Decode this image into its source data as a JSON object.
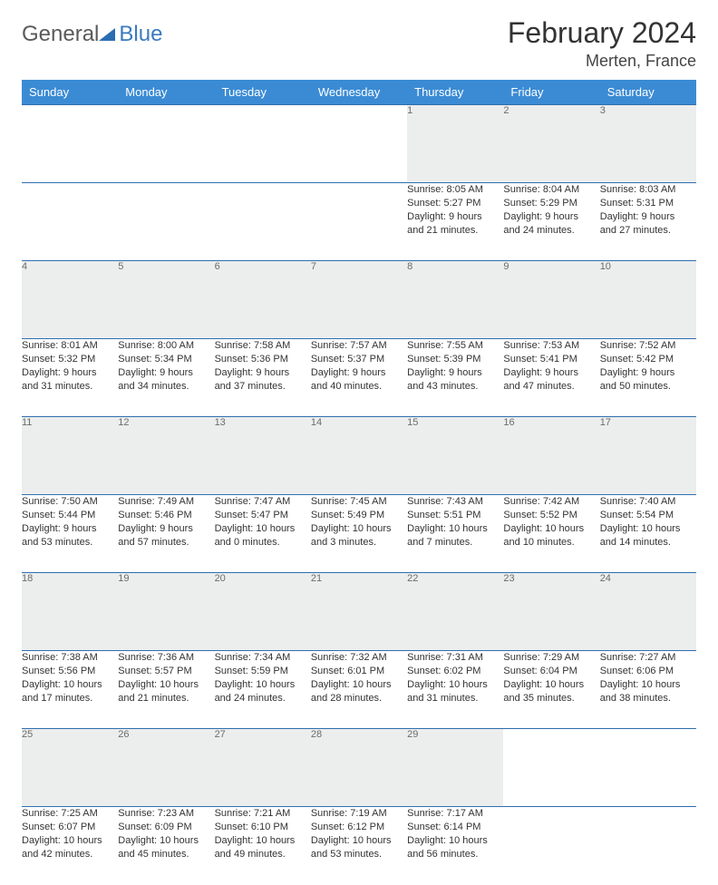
{
  "logo": {
    "general": "General",
    "blue": "Blue"
  },
  "title": {
    "month": "February 2024",
    "location": "Merten, France"
  },
  "colors": {
    "header_bg": "#3b8bd4",
    "header_text": "#ffffff",
    "daynum_bg": "#eceeee",
    "daynum_text": "#6b6b6b",
    "rule": "#2f6fae",
    "body_text": "#333333"
  },
  "weekdays": [
    "Sunday",
    "Monday",
    "Tuesday",
    "Wednesday",
    "Thursday",
    "Friday",
    "Saturday"
  ],
  "weeks": [
    [
      null,
      null,
      null,
      null,
      {
        "d": "1",
        "sr": "Sunrise: 8:05 AM",
        "ss": "Sunset: 5:27 PM",
        "dl1": "Daylight: 9 hours",
        "dl2": "and 21 minutes."
      },
      {
        "d": "2",
        "sr": "Sunrise: 8:04 AM",
        "ss": "Sunset: 5:29 PM",
        "dl1": "Daylight: 9 hours",
        "dl2": "and 24 minutes."
      },
      {
        "d": "3",
        "sr": "Sunrise: 8:03 AM",
        "ss": "Sunset: 5:31 PM",
        "dl1": "Daylight: 9 hours",
        "dl2": "and 27 minutes."
      }
    ],
    [
      {
        "d": "4",
        "sr": "Sunrise: 8:01 AM",
        "ss": "Sunset: 5:32 PM",
        "dl1": "Daylight: 9 hours",
        "dl2": "and 31 minutes."
      },
      {
        "d": "5",
        "sr": "Sunrise: 8:00 AM",
        "ss": "Sunset: 5:34 PM",
        "dl1": "Daylight: 9 hours",
        "dl2": "and 34 minutes."
      },
      {
        "d": "6",
        "sr": "Sunrise: 7:58 AM",
        "ss": "Sunset: 5:36 PM",
        "dl1": "Daylight: 9 hours",
        "dl2": "and 37 minutes."
      },
      {
        "d": "7",
        "sr": "Sunrise: 7:57 AM",
        "ss": "Sunset: 5:37 PM",
        "dl1": "Daylight: 9 hours",
        "dl2": "and 40 minutes."
      },
      {
        "d": "8",
        "sr": "Sunrise: 7:55 AM",
        "ss": "Sunset: 5:39 PM",
        "dl1": "Daylight: 9 hours",
        "dl2": "and 43 minutes."
      },
      {
        "d": "9",
        "sr": "Sunrise: 7:53 AM",
        "ss": "Sunset: 5:41 PM",
        "dl1": "Daylight: 9 hours",
        "dl2": "and 47 minutes."
      },
      {
        "d": "10",
        "sr": "Sunrise: 7:52 AM",
        "ss": "Sunset: 5:42 PM",
        "dl1": "Daylight: 9 hours",
        "dl2": "and 50 minutes."
      }
    ],
    [
      {
        "d": "11",
        "sr": "Sunrise: 7:50 AM",
        "ss": "Sunset: 5:44 PM",
        "dl1": "Daylight: 9 hours",
        "dl2": "and 53 minutes."
      },
      {
        "d": "12",
        "sr": "Sunrise: 7:49 AM",
        "ss": "Sunset: 5:46 PM",
        "dl1": "Daylight: 9 hours",
        "dl2": "and 57 minutes."
      },
      {
        "d": "13",
        "sr": "Sunrise: 7:47 AM",
        "ss": "Sunset: 5:47 PM",
        "dl1": "Daylight: 10 hours",
        "dl2": "and 0 minutes."
      },
      {
        "d": "14",
        "sr": "Sunrise: 7:45 AM",
        "ss": "Sunset: 5:49 PM",
        "dl1": "Daylight: 10 hours",
        "dl2": "and 3 minutes."
      },
      {
        "d": "15",
        "sr": "Sunrise: 7:43 AM",
        "ss": "Sunset: 5:51 PM",
        "dl1": "Daylight: 10 hours",
        "dl2": "and 7 minutes."
      },
      {
        "d": "16",
        "sr": "Sunrise: 7:42 AM",
        "ss": "Sunset: 5:52 PM",
        "dl1": "Daylight: 10 hours",
        "dl2": "and 10 minutes."
      },
      {
        "d": "17",
        "sr": "Sunrise: 7:40 AM",
        "ss": "Sunset: 5:54 PM",
        "dl1": "Daylight: 10 hours",
        "dl2": "and 14 minutes."
      }
    ],
    [
      {
        "d": "18",
        "sr": "Sunrise: 7:38 AM",
        "ss": "Sunset: 5:56 PM",
        "dl1": "Daylight: 10 hours",
        "dl2": "and 17 minutes."
      },
      {
        "d": "19",
        "sr": "Sunrise: 7:36 AM",
        "ss": "Sunset: 5:57 PM",
        "dl1": "Daylight: 10 hours",
        "dl2": "and 21 minutes."
      },
      {
        "d": "20",
        "sr": "Sunrise: 7:34 AM",
        "ss": "Sunset: 5:59 PM",
        "dl1": "Daylight: 10 hours",
        "dl2": "and 24 minutes."
      },
      {
        "d": "21",
        "sr": "Sunrise: 7:32 AM",
        "ss": "Sunset: 6:01 PM",
        "dl1": "Daylight: 10 hours",
        "dl2": "and 28 minutes."
      },
      {
        "d": "22",
        "sr": "Sunrise: 7:31 AM",
        "ss": "Sunset: 6:02 PM",
        "dl1": "Daylight: 10 hours",
        "dl2": "and 31 minutes."
      },
      {
        "d": "23",
        "sr": "Sunrise: 7:29 AM",
        "ss": "Sunset: 6:04 PM",
        "dl1": "Daylight: 10 hours",
        "dl2": "and 35 minutes."
      },
      {
        "d": "24",
        "sr": "Sunrise: 7:27 AM",
        "ss": "Sunset: 6:06 PM",
        "dl1": "Daylight: 10 hours",
        "dl2": "and 38 minutes."
      }
    ],
    [
      {
        "d": "25",
        "sr": "Sunrise: 7:25 AM",
        "ss": "Sunset: 6:07 PM",
        "dl1": "Daylight: 10 hours",
        "dl2": "and 42 minutes."
      },
      {
        "d": "26",
        "sr": "Sunrise: 7:23 AM",
        "ss": "Sunset: 6:09 PM",
        "dl1": "Daylight: 10 hours",
        "dl2": "and 45 minutes."
      },
      {
        "d": "27",
        "sr": "Sunrise: 7:21 AM",
        "ss": "Sunset: 6:10 PM",
        "dl1": "Daylight: 10 hours",
        "dl2": "and 49 minutes."
      },
      {
        "d": "28",
        "sr": "Sunrise: 7:19 AM",
        "ss": "Sunset: 6:12 PM",
        "dl1": "Daylight: 10 hours",
        "dl2": "and 53 minutes."
      },
      {
        "d": "29",
        "sr": "Sunrise: 7:17 AM",
        "ss": "Sunset: 6:14 PM",
        "dl1": "Daylight: 10 hours",
        "dl2": "and 56 minutes."
      },
      null,
      null
    ]
  ]
}
